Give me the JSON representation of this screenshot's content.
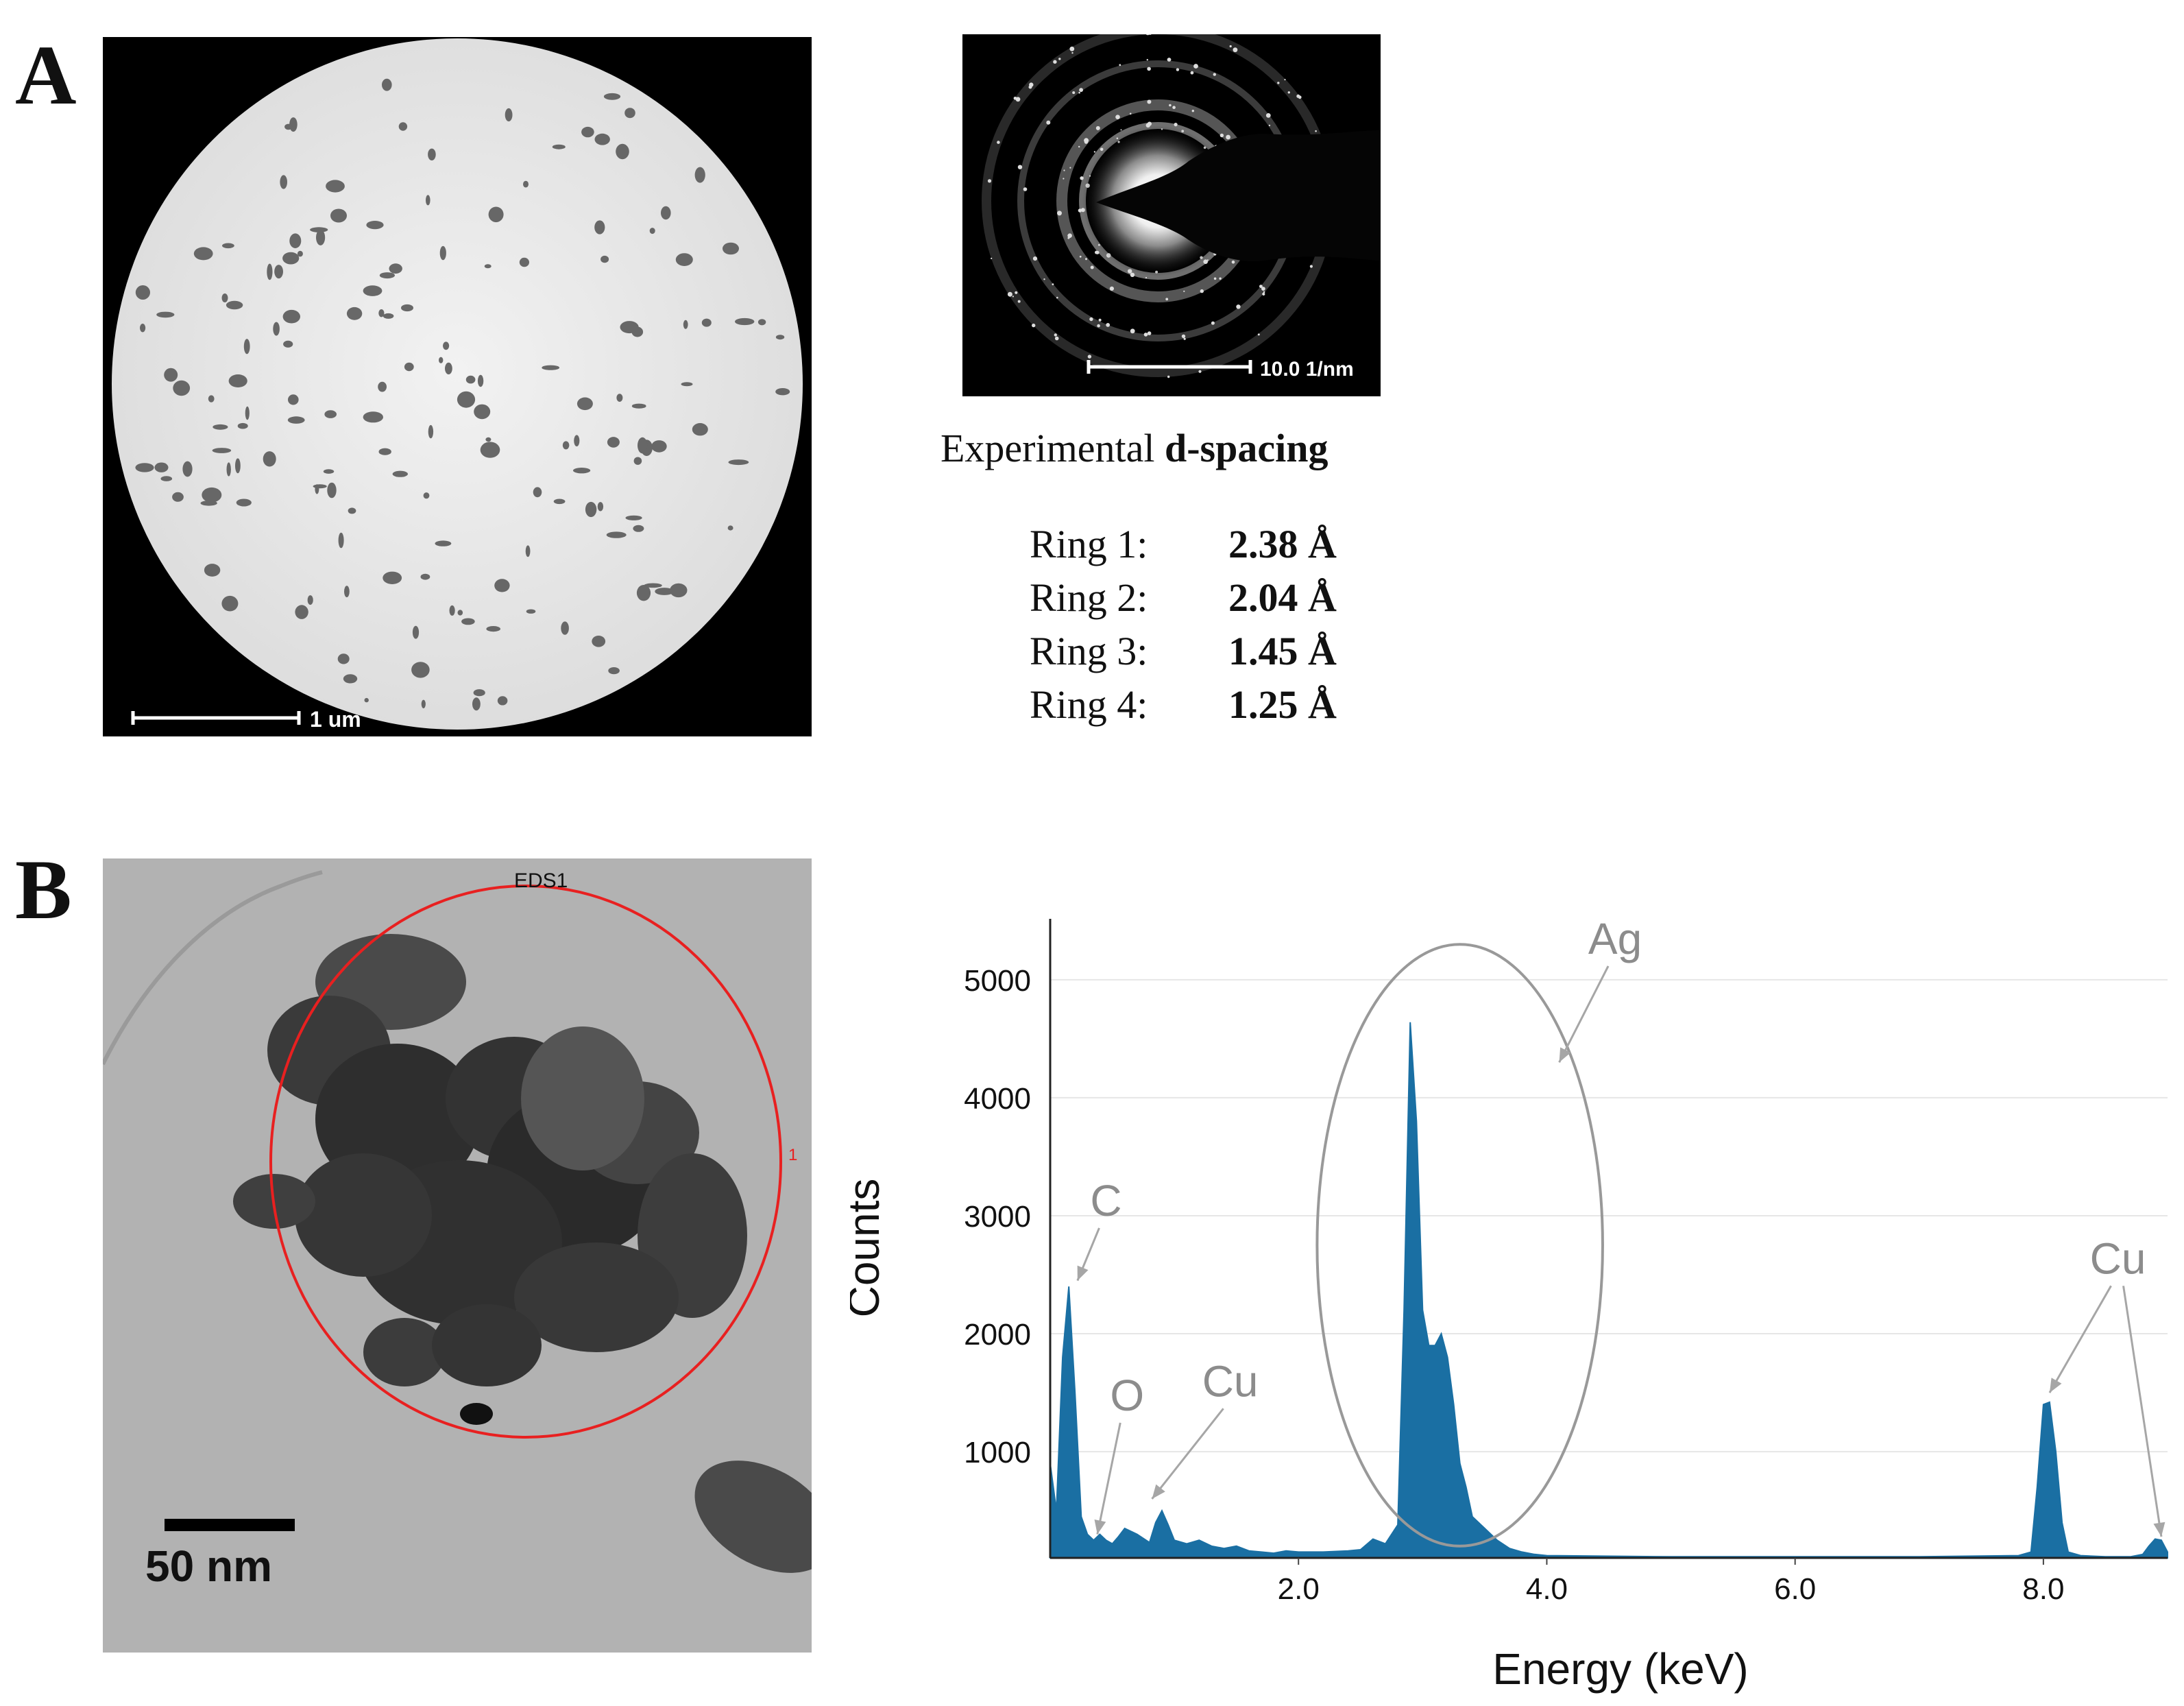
{
  "panels": [
    {
      "letter": "A"
    },
    {
      "letter": "B"
    }
  ],
  "tem_overview": {
    "scalebar_label": "1 um"
  },
  "saed": {
    "scalebar_label": "10.0 1/nm"
  },
  "d_spacing": {
    "title_prefix": "Experimental ",
    "title_bold": "d-spacing",
    "rings": [
      {
        "label": "Ring 1:",
        "value": "2.38 Å"
      },
      {
        "label": "Ring 2:",
        "value": "2.04 Å"
      },
      {
        "label": "Ring 3:",
        "value": "1.45 Å"
      },
      {
        "label": "Ring 4:",
        "value": "1.25 Å"
      }
    ]
  },
  "tem_cluster": {
    "region_label": "EDS1",
    "region_marker": "1",
    "scalebar_label": "50 nm"
  },
  "chart_data": {
    "type": "area",
    "xlabel": "Energy (keV)",
    "ylabel": "Counts",
    "xlim": [
      0.0,
      9.0
    ],
    "ylim": [
      100,
      5400
    ],
    "xticks": [
      2.0,
      4.0,
      6.0,
      8.0
    ],
    "xtick_labels": [
      "2.0",
      "4.0",
      "6.0",
      "8.0"
    ],
    "yticks": [
      1000,
      2000,
      3000,
      4000,
      5000
    ],
    "ytick_labels": [
      "1000",
      "2000",
      "3000",
      "4000",
      "5000"
    ],
    "grid": true,
    "series_color": "#1a6fa3",
    "x": [
      0.0,
      0.05,
      0.1,
      0.15,
      0.2,
      0.25,
      0.3,
      0.35,
      0.4,
      0.45,
      0.5,
      0.55,
      0.6,
      0.7,
      0.8,
      0.85,
      0.9,
      0.95,
      1.0,
      1.1,
      1.2,
      1.3,
      1.4,
      1.5,
      1.6,
      1.7,
      1.8,
      1.9,
      2.0,
      2.2,
      2.4,
      2.5,
      2.6,
      2.7,
      2.8,
      2.85,
      2.9,
      2.95,
      3.0,
      3.05,
      3.1,
      3.15,
      3.2,
      3.25,
      3.3,
      3.35,
      3.4,
      3.5,
      3.6,
      3.7,
      3.8,
      3.9,
      4.0,
      5.0,
      6.0,
      7.0,
      7.8,
      7.9,
      7.95,
      8.0,
      8.05,
      8.1,
      8.15,
      8.2,
      8.3,
      8.5,
      8.7,
      8.8,
      8.85,
      8.9,
      8.95,
      9.0
    ],
    "y": [
      900,
      500,
      1800,
      2400,
      1500,
      450,
      300,
      250,
      300,
      250,
      220,
      280,
      350,
      300,
      230,
      400,
      500,
      380,
      250,
      220,
      250,
      200,
      180,
      200,
      160,
      150,
      140,
      160,
      150,
      150,
      160,
      170,
      260,
      220,
      380,
      2200,
      4640,
      3800,
      2200,
      1900,
      1900,
      2000,
      1800,
      1400,
      900,
      700,
      450,
      350,
      250,
      180,
      150,
      130,
      120,
      110,
      110,
      110,
      120,
      150,
      700,
      1400,
      1420,
      1000,
      400,
      150,
      120,
      110,
      110,
      130,
      200,
      260,
      250,
      150
    ],
    "annotations": [
      {
        "text": "C",
        "x": 0.45,
        "y": 3000,
        "arrow_to": [
          0.22,
          2450
        ]
      },
      {
        "text": "O",
        "x": 0.62,
        "y": 1350,
        "arrow_to": [
          0.38,
          300
        ]
      },
      {
        "text": "Cu",
        "x": 1.45,
        "y": 1470,
        "arrow_to": [
          0.82,
          600
        ]
      },
      {
        "text": "Ag",
        "x": 4.55,
        "y": 5220,
        "arrow_to": [
          4.1,
          4300
        ]
      },
      {
        "text": "Cu",
        "x": 8.6,
        "y": 2510,
        "arrow_to": [
          8.05,
          1500
        ]
      }
    ],
    "cu_second_arrow_to": [
      8.95,
      280
    ],
    "ellipse": {
      "cx": 3.3,
      "cy": 2750,
      "rx": 1.15,
      "ry": 2550
    }
  }
}
